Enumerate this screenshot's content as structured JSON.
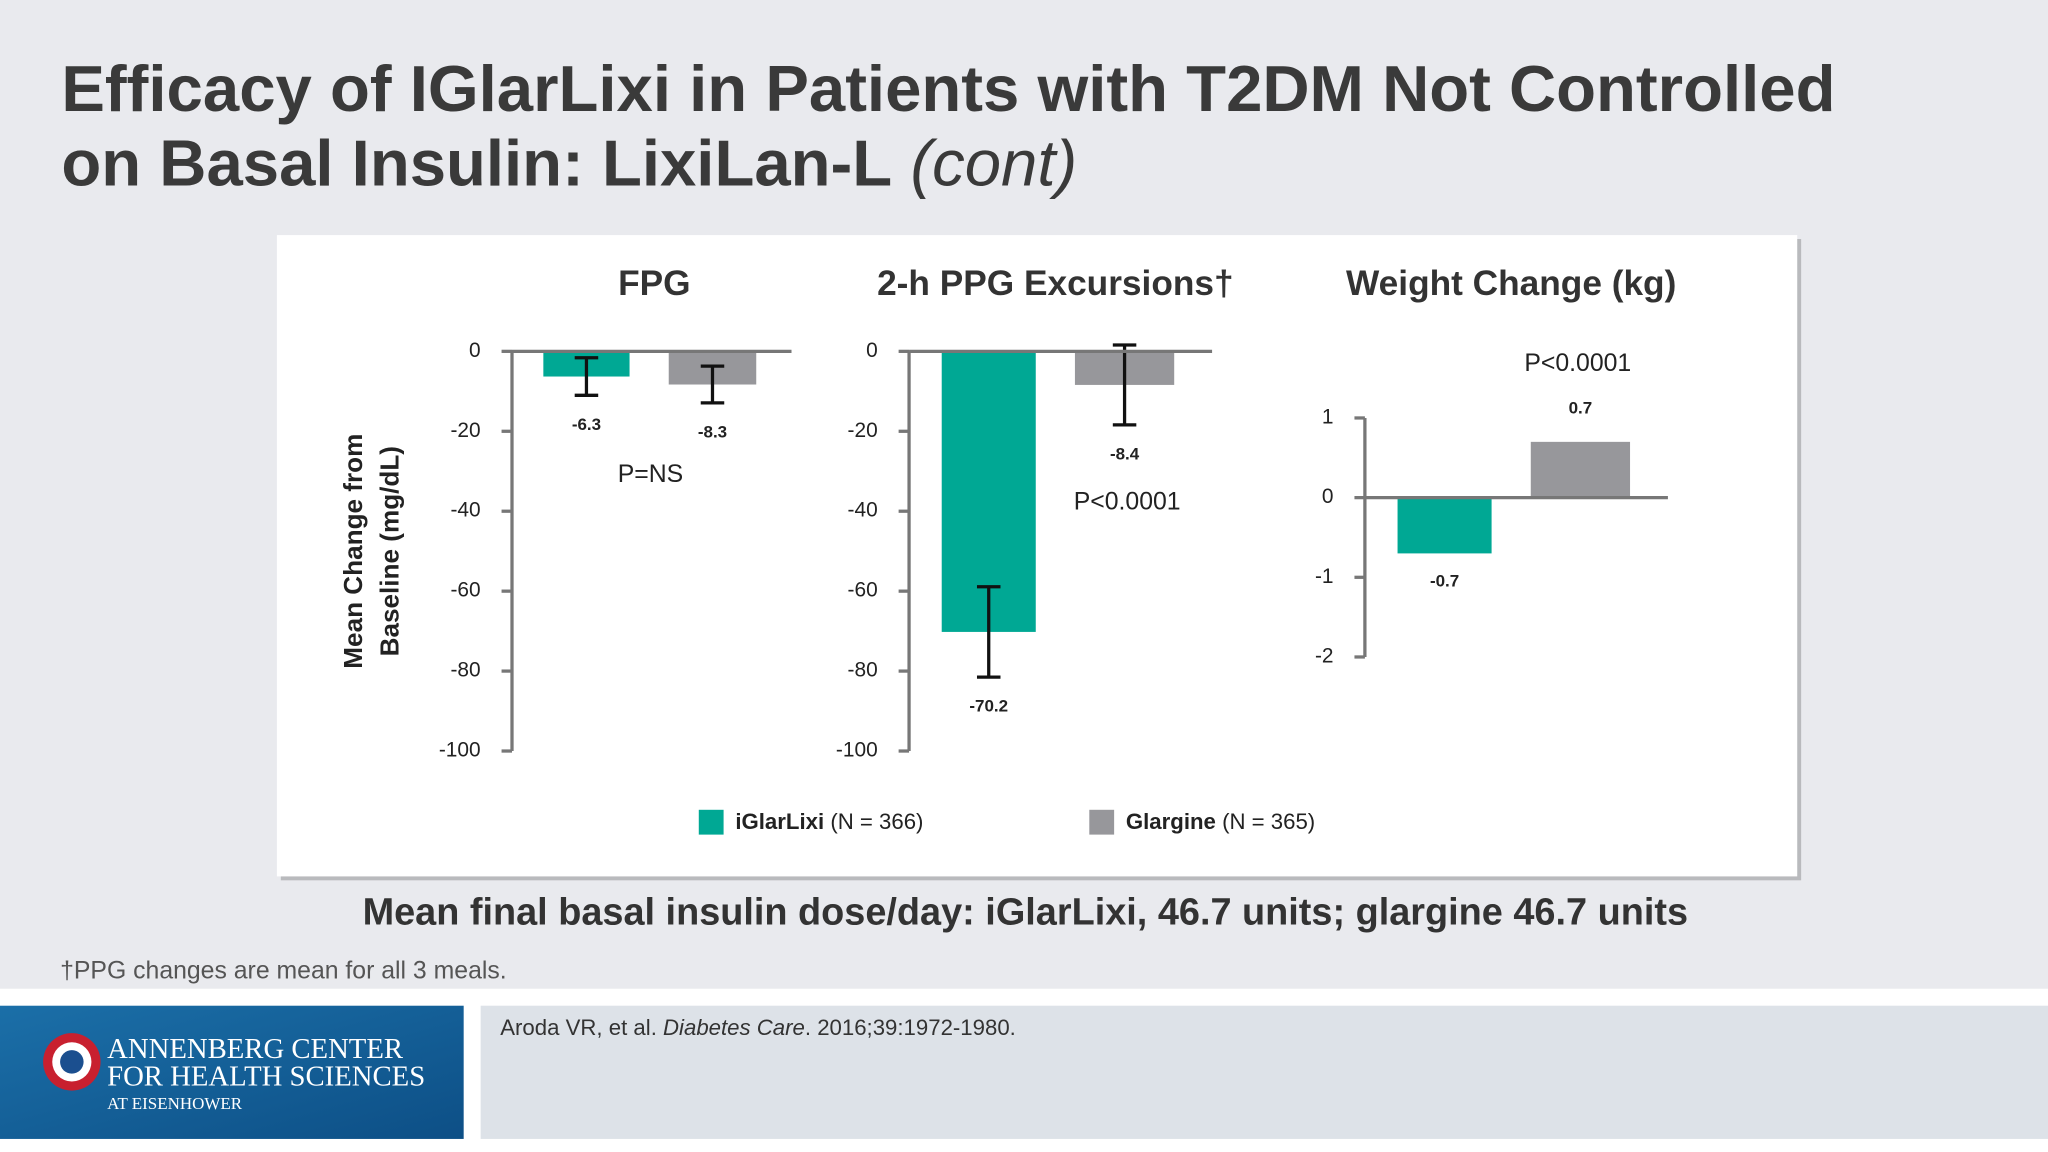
{
  "slide": {
    "title_line1": "Efficacy of IGlarLixi in Patients with T2DM Not Controlled",
    "title_line2": "on Basal Insulin: LixiLan-L",
    "title_suffix": "(cont)",
    "summary": "Mean final basal insulin dose/day: iGlarLixi, 46.7 units; glargine 46.7 units",
    "footnote": "†PPG changes are mean for all 3 meals.",
    "reference": {
      "authors": "Aroda VR, et al. ",
      "journal": "Diabetes Care",
      "details": ". 2016;39:1972-1980."
    },
    "logo": {
      "line1": "ANNENBERG CENTER",
      "line2": "FOR HEALTH SCIENCES",
      "line3": "AT EISENHOWER"
    }
  },
  "chart_data": [
    {
      "type": "bar",
      "title": "FPG",
      "ylabel": [
        "Mean Change from",
        "Baseline (mg/dL)"
      ],
      "annotation": "P=NS",
      "categories": [
        null
      ],
      "series": [
        {
          "name": "iGlarLixi",
          "note": "(N = 366)",
          "color": "#00a894",
          "values": [
            -6.3
          ],
          "errors": [
            4.7
          ]
        },
        {
          "name": "Glargine",
          "note": "(N = 365)",
          "color": "#97979b",
          "values": [
            -8.3
          ],
          "errors": [
            4.6
          ]
        }
      ],
      "ylim": [
        -100,
        0
      ],
      "yticks": [
        0,
        -20,
        -40,
        -60,
        -80,
        -100
      ]
    },
    {
      "type": "bar",
      "title": "2-h PPG Excursions†",
      "annotation": "P<0.0001",
      "categories": [
        null
      ],
      "series": [
        {
          "color": "#00a894",
          "values": [
            -70.2
          ],
          "errors": [
            11.3
          ]
        },
        {
          "color": "#97979b",
          "values": [
            -8.4
          ],
          "errors": [
            10
          ]
        }
      ],
      "ylim": [
        -100,
        0
      ],
      "yticks": [
        0,
        -20,
        -40,
        -60,
        -80,
        -100
      ]
    },
    {
      "type": "bar",
      "title": "Weight Change (kg)",
      "annotation": "P<0.0001",
      "categories": [
        null
      ],
      "series": [
        {
          "color": "#00a894",
          "values": [
            -0.7
          ]
        },
        {
          "color": "#97979b",
          "values": [
            0.7
          ]
        }
      ],
      "ylim": [
        -2,
        1
      ],
      "yticks": [
        1,
        0,
        -1,
        -2
      ]
    }
  ]
}
